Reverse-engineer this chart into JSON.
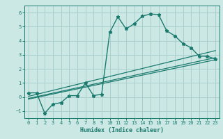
{
  "xlabel": "Humidex (Indice chaleur)",
  "bg_color": "#cce8e5",
  "line_color": "#1a7a6e",
  "grid_color": "#aacfcc",
  "xlim": [
    -0.5,
    23.5
  ],
  "ylim": [
    -1.5,
    6.5
  ],
  "xticks": [
    0,
    1,
    2,
    3,
    4,
    5,
    6,
    7,
    8,
    9,
    10,
    11,
    12,
    13,
    14,
    15,
    16,
    17,
    18,
    19,
    20,
    21,
    22,
    23
  ],
  "yticks": [
    -1,
    0,
    1,
    2,
    3,
    4,
    5,
    6
  ],
  "line1_x": [
    0,
    1,
    2,
    3,
    4,
    5,
    6,
    7,
    8,
    9,
    10,
    11,
    12,
    13,
    14,
    15,
    16,
    17,
    18,
    19,
    20,
    21,
    22,
    23
  ],
  "line1_y": [
    0.3,
    0.3,
    -1.15,
    -0.5,
    -0.4,
    0.1,
    0.1,
    1.0,
    0.1,
    0.2,
    4.6,
    5.7,
    4.85,
    5.2,
    5.75,
    5.9,
    5.85,
    4.7,
    4.35,
    3.8,
    3.5,
    2.9,
    2.9,
    2.7
  ],
  "line2_x": [
    0,
    23
  ],
  "line2_y": [
    0.05,
    3.3
  ],
  "line3_x": [
    0,
    23
  ],
  "line3_y": [
    -0.1,
    2.8
  ],
  "line4_x": [
    0,
    23
  ],
  "line4_y": [
    -0.15,
    2.65
  ]
}
